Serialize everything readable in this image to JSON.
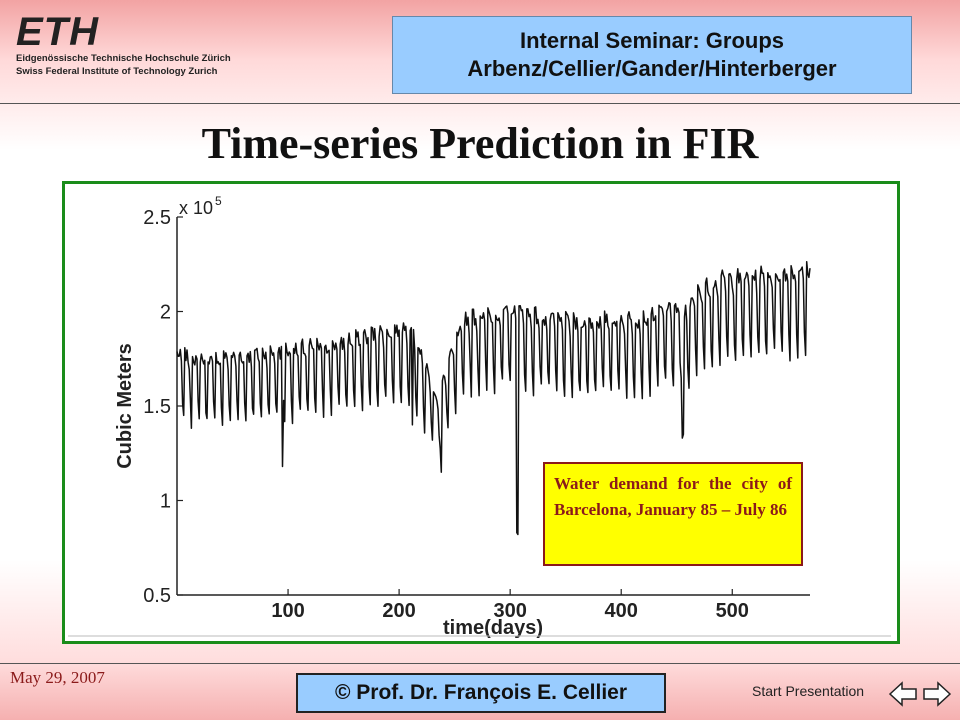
{
  "header": {
    "logo_mark": "ETH",
    "logo_line1": "Eidgenössische Technische Hochschule Zürich",
    "logo_line2": "Swiss Federal Institute of Technology Zurich",
    "seminar_line1": "Internal Seminar: Groups",
    "seminar_line2": "Arbenz/Cellier/Gander/Hinterberger"
  },
  "slide_title": "Time-series Prediction in FIR",
  "caption": "Water demand for the city of Barcelona, January 85 – July 86",
  "footer": {
    "date": "May 29, 2007",
    "author": "© Prof. Dr. François E. Cellier",
    "start_link": "Start Presentation",
    "nav_prev_icon": "arrow-left-icon",
    "nav_next_icon": "arrow-right-icon"
  },
  "colors": {
    "frame_border": "#1a8c1a",
    "caption_bg": "#ffff00",
    "caption_text": "#8b1a1a",
    "box_blue": "#99ccff"
  },
  "chart_data": {
    "type": "line",
    "xlabel": "time(days)",
    "ylabel": "Cubic Meters",
    "y_scale_label": "x 10",
    "y_scale_exp": "5",
    "xlim": [
      0,
      570
    ],
    "ylim": [
      0.5,
      2.5
    ],
    "x_ticks": [
      100,
      200,
      300,
      400,
      500
    ],
    "y_ticks": [
      0.5,
      1,
      1.5,
      2,
      2.5
    ],
    "y_tick_labels": [
      "0.5",
      "1",
      "1.5",
      "2",
      "2.5"
    ],
    "grid": false,
    "weekly_cycle": true,
    "weekly_pattern": [
      1.0,
      1.0,
      0.99,
      0.99,
      0.97,
      0.85,
      0.8
    ],
    "level_curve": [
      [
        0,
        1.78
      ],
      [
        30,
        1.76
      ],
      [
        60,
        1.78
      ],
      [
        90,
        1.8
      ],
      [
        120,
        1.82
      ],
      [
        150,
        1.85
      ],
      [
        180,
        1.9
      ],
      [
        210,
        1.93
      ],
      [
        225,
        1.7
      ],
      [
        235,
        1.55
      ],
      [
        245,
        1.75
      ],
      [
        260,
        1.98
      ],
      [
        290,
        2.0
      ],
      [
        300,
        2.02
      ],
      [
        330,
        1.98
      ],
      [
        360,
        1.95
      ],
      [
        390,
        1.97
      ],
      [
        420,
        1.97
      ],
      [
        440,
        2.03
      ],
      [
        460,
        2.02
      ],
      [
        470,
        2.12
      ],
      [
        490,
        2.18
      ],
      [
        520,
        2.2
      ],
      [
        545,
        2.22
      ],
      [
        570,
        2.23
      ]
    ],
    "events": [
      {
        "day": 95,
        "value": 1.18
      },
      {
        "day": 212,
        "value": 1.4
      },
      {
        "day": 238,
        "value": 1.15
      },
      {
        "day": 306,
        "value": 0.83
      },
      {
        "day": 307,
        "value": 0.82
      },
      {
        "day": 455,
        "value": 1.33
      },
      {
        "day": 456,
        "value": 1.35
      }
    ]
  }
}
